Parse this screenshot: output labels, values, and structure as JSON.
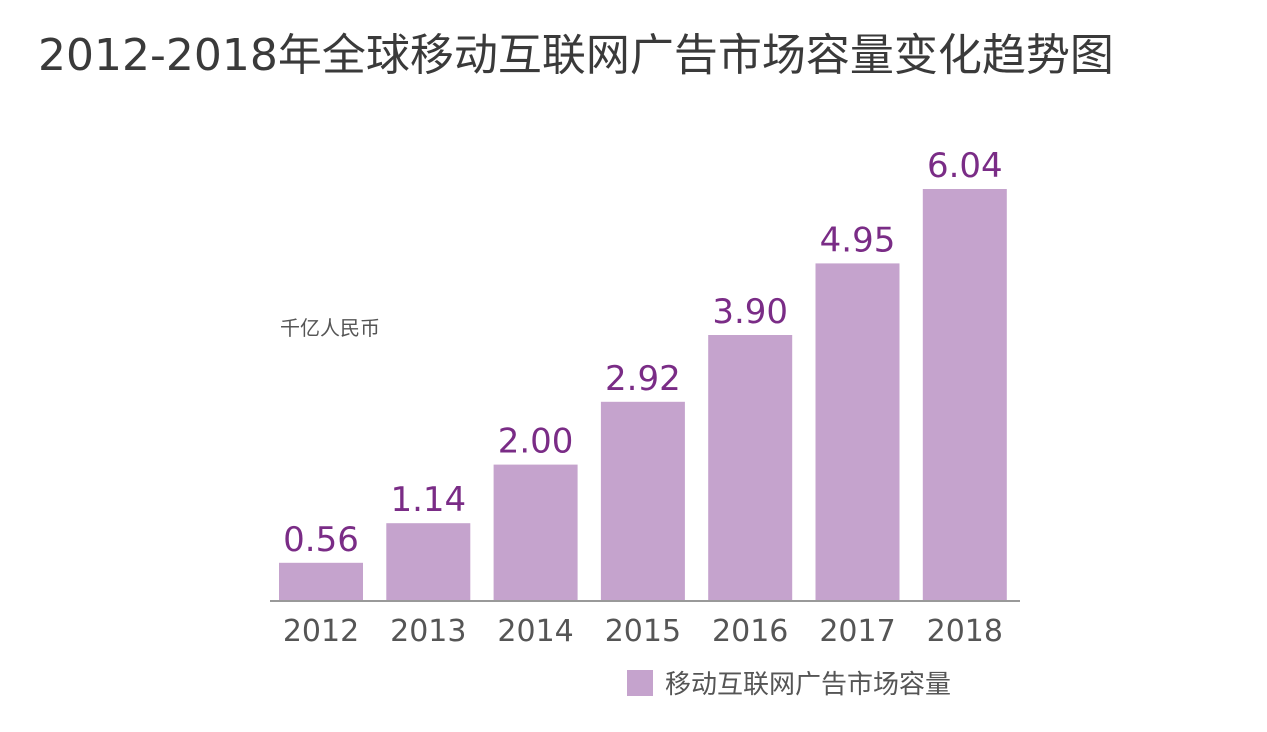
{
  "chart_data": {
    "type": "bar",
    "title": "2012-2018年全球移动互联网广告市场容量变化趋势图",
    "unit_label": "千亿人民币",
    "categories": [
      "2012",
      "2013",
      "2014",
      "2015",
      "2016",
      "2017",
      "2018"
    ],
    "series": [
      {
        "name": "移动互联网广告市场容量",
        "values": [
          0.56,
          1.14,
          2.0,
          2.92,
          3.9,
          4.95,
          6.04
        ],
        "labels": [
          "0.56",
          "1.14",
          "2.00",
          "2.92",
          "3.90",
          "4.95",
          "6.04"
        ],
        "color": "#c5a3cd"
      }
    ],
    "value_label_color": "#7a2c86",
    "ylim": [
      0,
      6.04
    ],
    "grid": false,
    "legend": "bottom-right"
  }
}
